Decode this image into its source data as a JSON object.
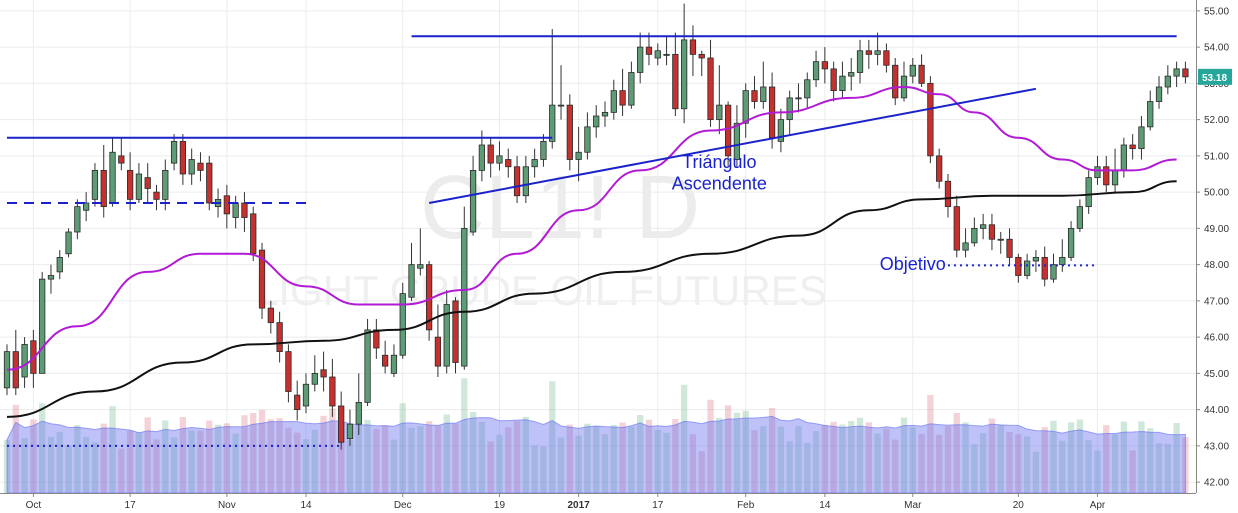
{
  "chart_data": {
    "type": "candlestick",
    "watermark": {
      "symbol": "CL1! D",
      "subtitle": "LIGHT CRUDE OIL FUTURES"
    },
    "ylim": [
      41.7,
      55.3
    ],
    "y_ticks": [
      "42.00",
      "43.00",
      "44.00",
      "45.00",
      "46.00",
      "47.00",
      "48.00",
      "49.00",
      "50.00",
      "51.00",
      "52.00",
      "53.00",
      "54.00",
      "55.00"
    ],
    "x_ticks": [
      {
        "label": "Oct",
        "bar": 3,
        "year": false
      },
      {
        "label": "17",
        "bar": 14,
        "year": false
      },
      {
        "label": "Nov",
        "bar": 25,
        "year": false
      },
      {
        "label": "14",
        "bar": 34,
        "year": false
      },
      {
        "label": "Dec",
        "bar": 45,
        "year": false
      },
      {
        "label": "19",
        "bar": 56,
        "year": false
      },
      {
        "label": "2017",
        "bar": 65,
        "year": true
      },
      {
        "label": "17",
        "bar": 74,
        "year": false
      },
      {
        "label": "Feb",
        "bar": 84,
        "year": false
      },
      {
        "label": "14",
        "bar": 93,
        "year": false
      },
      {
        "label": "Mar",
        "bar": 103,
        "year": false
      },
      {
        "label": "20",
        "bar": 115,
        "year": false
      },
      {
        "label": "Apr",
        "bar": 124,
        "year": false
      }
    ],
    "last_price": "53.18",
    "candles": [
      [
        44.6,
        45.6,
        44.4,
        45.8
      ],
      [
        45.6,
        44.6,
        44.4,
        46.2
      ],
      [
        44.9,
        45.8,
        44.6,
        46.0
      ],
      [
        45.9,
        45.0,
        44.6,
        46.2
      ],
      [
        45.0,
        47.6,
        45.0,
        47.8
      ],
      [
        47.6,
        47.7,
        47.2,
        48.0
      ],
      [
        47.8,
        48.2,
        47.6,
        48.4
      ],
      [
        48.3,
        48.9,
        48.2,
        49.0
      ],
      [
        48.9,
        49.6,
        48.7,
        49.8
      ],
      [
        49.5,
        49.7,
        49.2,
        50.0
      ],
      [
        49.8,
        50.6,
        49.6,
        50.8
      ],
      [
        50.6,
        49.6,
        49.3,
        51.3
      ],
      [
        49.7,
        51.1,
        49.6,
        51.5
      ],
      [
        51.0,
        50.8,
        50.6,
        51.5
      ],
      [
        50.6,
        49.8,
        49.5,
        51.1
      ],
      [
        49.8,
        50.5,
        49.7,
        50.8
      ],
      [
        50.4,
        50.1,
        49.7,
        50.8
      ],
      [
        50.0,
        49.8,
        49.5,
        50.2
      ],
      [
        49.8,
        50.6,
        49.5,
        50.9
      ],
      [
        50.8,
        51.4,
        50.6,
        51.6
      ],
      [
        51.4,
        50.5,
        50.2,
        51.6
      ],
      [
        50.5,
        50.9,
        50.2,
        51.2
      ],
      [
        50.8,
        50.6,
        50.3,
        51.1
      ],
      [
        50.8,
        49.7,
        49.5,
        51.0
      ],
      [
        49.6,
        49.8,
        49.3,
        50.1
      ],
      [
        49.9,
        49.4,
        49.0,
        50.2
      ],
      [
        49.3,
        49.7,
        49.0,
        49.9
      ],
      [
        49.7,
        49.3,
        48.9,
        50.0
      ],
      [
        49.4,
        48.3,
        48.1,
        49.6
      ],
      [
        48.4,
        46.8,
        46.5,
        48.6
      ],
      [
        46.8,
        46.4,
        46.1,
        47.0
      ],
      [
        46.4,
        45.6,
        45.3,
        46.7
      ],
      [
        45.6,
        44.5,
        44.2,
        45.8
      ],
      [
        44.4,
        44.0,
        43.7,
        44.8
      ],
      [
        44.1,
        44.7,
        43.9,
        45.0
      ],
      [
        44.7,
        45.0,
        44.5,
        45.5
      ],
      [
        45.1,
        44.9,
        44.5,
        45.6
      ],
      [
        44.9,
        44.1,
        43.8,
        45.4
      ],
      [
        44.1,
        43.1,
        42.9,
        44.5
      ],
      [
        43.2,
        43.6,
        43.0,
        44.0
      ],
      [
        43.6,
        44.2,
        43.3,
        45.0
      ],
      [
        44.2,
        46.2,
        44.1,
        46.5
      ],
      [
        46.2,
        45.7,
        45.4,
        46.5
      ],
      [
        45.5,
        45.2,
        45.0,
        45.9
      ],
      [
        45.0,
        45.5,
        44.9,
        45.8
      ],
      [
        45.5,
        47.2,
        45.4,
        47.5
      ],
      [
        47.1,
        48.0,
        47.0,
        48.6
      ],
      [
        47.9,
        48.0,
        47.7,
        49.0
      ],
      [
        48.0,
        46.2,
        45.9,
        48.1
      ],
      [
        46.0,
        45.2,
        44.9,
        46.9
      ],
      [
        45.2,
        46.9,
        45.0,
        47.3
      ],
      [
        47.0,
        45.3,
        45.0,
        47.1
      ],
      [
        45.2,
        49.0,
        45.1,
        49.6
      ],
      [
        48.9,
        50.6,
        48.8,
        51.0
      ],
      [
        50.6,
        51.3,
        50.3,
        51.7
      ],
      [
        51.3,
        50.8,
        50.4,
        51.5
      ],
      [
        50.8,
        51.0,
        50.6,
        51.4
      ],
      [
        50.9,
        50.7,
        50.4,
        51.2
      ],
      [
        50.7,
        49.9,
        49.7,
        51.0
      ],
      [
        49.9,
        50.7,
        49.7,
        51.0
      ],
      [
        50.7,
        50.9,
        50.4,
        51.2
      ],
      [
        50.9,
        51.4,
        50.7,
        51.6
      ],
      [
        51.4,
        52.4,
        51.2,
        54.5
      ],
      [
        52.4,
        52.4,
        52.0,
        53.5
      ],
      [
        52.4,
        50.9,
        50.6,
        52.7
      ],
      [
        50.9,
        51.1,
        50.3,
        51.8
      ],
      [
        51.1,
        51.8,
        50.9,
        52.2
      ],
      [
        51.8,
        52.1,
        51.5,
        52.4
      ],
      [
        52.1,
        52.2,
        51.8,
        52.5
      ],
      [
        52.2,
        52.8,
        52.0,
        53.1
      ],
      [
        52.8,
        52.4,
        52.1,
        53.4
      ],
      [
        52.4,
        53.3,
        52.3,
        53.6
      ],
      [
        53.3,
        54.0,
        53.0,
        54.4
      ],
      [
        54.0,
        53.8,
        53.5,
        54.4
      ],
      [
        53.7,
        53.9,
        53.5,
        54.1
      ],
      [
        53.8,
        53.8,
        53.5,
        54.3
      ],
      [
        53.8,
        52.3,
        52.1,
        54.4
      ],
      [
        52.3,
        54.2,
        51.9,
        55.2
      ],
      [
        54.2,
        53.8,
        53.2,
        54.6
      ],
      [
        53.8,
        53.7,
        53.2,
        53.9
      ],
      [
        53.7,
        52.0,
        51.8,
        54.2
      ],
      [
        52.0,
        52.4,
        51.6,
        53.5
      ],
      [
        52.4,
        51.0,
        50.7,
        52.5
      ],
      [
        50.9,
        51.9,
        50.7,
        52.4
      ],
      [
        51.9,
        52.8,
        51.5,
        53.0
      ],
      [
        52.8,
        52.5,
        52.3,
        53.2
      ],
      [
        52.5,
        52.9,
        52.3,
        53.6
      ],
      [
        52.9,
        51.5,
        51.2,
        53.3
      ],
      [
        51.4,
        52.0,
        51.1,
        52.3
      ],
      [
        52.0,
        52.6,
        51.6,
        52.8
      ],
      [
        52.6,
        52.6,
        52.2,
        53.0
      ],
      [
        52.6,
        53.1,
        52.3,
        53.3
      ],
      [
        53.1,
        53.6,
        52.9,
        53.9
      ],
      [
        53.6,
        53.4,
        53.0,
        54.0
      ],
      [
        53.4,
        52.8,
        52.5,
        53.6
      ],
      [
        52.8,
        53.2,
        52.6,
        53.6
      ],
      [
        53.2,
        53.3,
        52.8,
        53.7
      ],
      [
        53.3,
        53.9,
        53.0,
        54.2
      ],
      [
        53.9,
        53.8,
        53.4,
        54.2
      ],
      [
        53.8,
        53.9,
        53.5,
        54.4
      ],
      [
        53.9,
        53.5,
        53.3,
        54.1
      ],
      [
        53.5,
        52.6,
        52.4,
        53.7
      ],
      [
        52.6,
        53.2,
        52.5,
        53.6
      ],
      [
        53.2,
        53.5,
        53.0,
        53.7
      ],
      [
        53.5,
        53.0,
        52.9,
        53.8
      ],
      [
        53.0,
        51.0,
        50.8,
        53.2
      ],
      [
        51.0,
        50.3,
        50.1,
        51.2
      ],
      [
        50.3,
        49.6,
        49.3,
        50.5
      ],
      [
        49.6,
        48.4,
        48.2,
        49.9
      ],
      [
        48.4,
        48.6,
        48.2,
        49.0
      ],
      [
        48.6,
        49.0,
        48.5,
        49.3
      ],
      [
        49.0,
        49.1,
        48.7,
        49.4
      ],
      [
        49.1,
        48.7,
        48.4,
        49.4
      ],
      [
        48.7,
        48.7,
        48.3,
        48.9
      ],
      [
        48.7,
        48.2,
        48.0,
        49.0
      ],
      [
        48.2,
        47.7,
        47.5,
        48.3
      ],
      [
        47.7,
        48.1,
        47.6,
        48.3
      ],
      [
        48.1,
        48.2,
        47.8,
        48.4
      ],
      [
        48.2,
        47.6,
        47.4,
        48.5
      ],
      [
        47.6,
        48.0,
        47.5,
        48.3
      ],
      [
        48.0,
        48.2,
        47.8,
        48.7
      ],
      [
        48.2,
        49.0,
        48.1,
        49.2
      ],
      [
        49.0,
        49.6,
        48.9,
        49.8
      ],
      [
        49.6,
        50.4,
        49.4,
        50.6
      ],
      [
        50.4,
        50.7,
        50.2,
        51.0
      ],
      [
        50.7,
        50.2,
        50.0,
        51.0
      ],
      [
        50.2,
        50.6,
        50.0,
        51.2
      ],
      [
        50.6,
        51.3,
        50.4,
        51.5
      ],
      [
        51.3,
        51.2,
        50.9,
        51.6
      ],
      [
        51.2,
        51.8,
        50.9,
        52.1
      ],
      [
        51.8,
        52.5,
        51.7,
        52.8
      ],
      [
        52.5,
        52.9,
        52.3,
        53.2
      ],
      [
        52.9,
        53.2,
        52.7,
        53.5
      ],
      [
        53.2,
        53.4,
        52.9,
        53.6
      ],
      [
        53.4,
        53.18,
        53.0,
        53.6
      ]
    ],
    "ma50": [
      {
        "bar": 0,
        "v": 45.1
      },
      {
        "bar": 8,
        "v": 46.3
      },
      {
        "bar": 16,
        "v": 47.8
      },
      {
        "bar": 22,
        "v": 48.3
      },
      {
        "bar": 27,
        "v": 48.3
      },
      {
        "bar": 34,
        "v": 47.4
      },
      {
        "bar": 40,
        "v": 46.9
      },
      {
        "bar": 45,
        "v": 46.9
      },
      {
        "bar": 52,
        "v": 47.3
      },
      {
        "bar": 58,
        "v": 48.3
      },
      {
        "bar": 65,
        "v": 49.5
      },
      {
        "bar": 72,
        "v": 50.6
      },
      {
        "bar": 80,
        "v": 51.7
      },
      {
        "bar": 88,
        "v": 52.2
      },
      {
        "bar": 96,
        "v": 52.6
      },
      {
        "bar": 102,
        "v": 52.9
      },
      {
        "bar": 106,
        "v": 52.7
      },
      {
        "bar": 110,
        "v": 52.2
      },
      {
        "bar": 115,
        "v": 51.5
      },
      {
        "bar": 120,
        "v": 50.9
      },
      {
        "bar": 124,
        "v": 50.6
      },
      {
        "bar": 128,
        "v": 50.6
      },
      {
        "bar": 133,
        "v": 50.9
      }
    ],
    "ma200": [
      {
        "bar": 0,
        "v": 43.8
      },
      {
        "bar": 10,
        "v": 44.5
      },
      {
        "bar": 20,
        "v": 45.3
      },
      {
        "bar": 28,
        "v": 45.8
      },
      {
        "bar": 36,
        "v": 45.9
      },
      {
        "bar": 44,
        "v": 46.2
      },
      {
        "bar": 52,
        "v": 46.7
      },
      {
        "bar": 60,
        "v": 47.2
      },
      {
        "bar": 70,
        "v": 47.8
      },
      {
        "bar": 80,
        "v": 48.3
      },
      {
        "bar": 90,
        "v": 48.8
      },
      {
        "bar": 98,
        "v": 49.5
      },
      {
        "bar": 104,
        "v": 49.8
      },
      {
        "bar": 112,
        "v": 49.9
      },
      {
        "bar": 120,
        "v": 49.9
      },
      {
        "bar": 128,
        "v": 50.0
      },
      {
        "bar": 133,
        "v": 50.3
      }
    ],
    "trendlines": [
      {
        "x1": 0,
        "y1": 51.5,
        "x2": 62,
        "y2": 51.5,
        "dash": false
      },
      {
        "x1": 0,
        "y1": 49.7,
        "x2": 34,
        "y2": 49.7,
        "dash": true
      },
      {
        "x1": 46,
        "y1": 54.3,
        "x2": 133,
        "y2": 54.3,
        "dash": false
      },
      {
        "x1": 48,
        "y1": 49.7,
        "x2": 117,
        "y2": 52.85,
        "dash": false
      },
      {
        "x1": 0,
        "y1": 43.0,
        "x2": 38,
        "y2": 43.0,
        "dash": "dot"
      },
      {
        "x1": 107,
        "y1": 47.98,
        "x2": 124,
        "y2": 47.98,
        "dash": "dot"
      }
    ],
    "annotations": [
      {
        "text": "Triángulo",
        "bar": 81,
        "y": 50.67
      },
      {
        "text": "Ascendente",
        "bar": 81,
        "y": 50.07
      },
      {
        "text": "Objetivo",
        "bar": 103,
        "y": 47.85
      }
    ]
  }
}
